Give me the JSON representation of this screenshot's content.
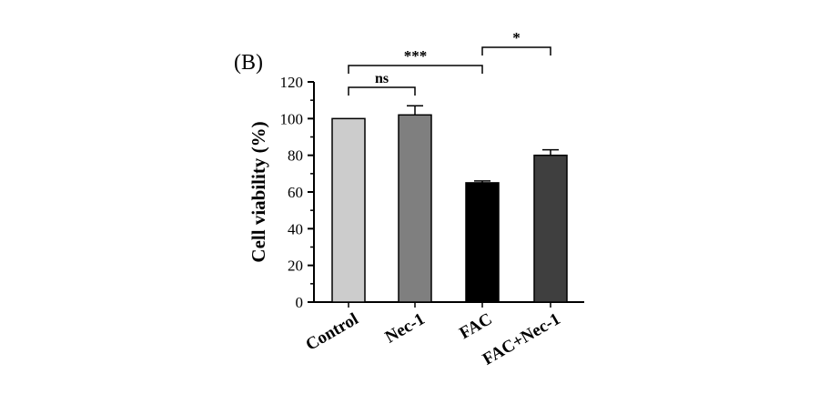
{
  "panel_label": "(B)",
  "chart_data": {
    "type": "bar",
    "categories": [
      "Control",
      "Nec-1",
      "FAC",
      "FAC+Nec-1"
    ],
    "values": [
      100,
      102,
      65,
      80
    ],
    "errors": [
      0,
      5,
      1,
      3
    ],
    "colors": [
      "#cccccc",
      "#7f7f7f",
      "#000000",
      "#3f3f3f"
    ],
    "ylabel": "Cell viability (%)",
    "ylim": [
      0,
      120
    ],
    "yticks": [
      0,
      20,
      40,
      60,
      80,
      100,
      120
    ],
    "grid": false,
    "legend": "none",
    "significance": [
      {
        "from": 0,
        "to": 1,
        "label": "ns"
      },
      {
        "from": 0,
        "to": 2,
        "label": "***"
      },
      {
        "from": 2,
        "to": 3,
        "label": "*"
      }
    ]
  }
}
